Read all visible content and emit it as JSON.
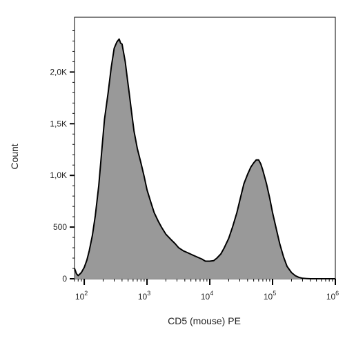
{
  "chart_data": {
    "type": "area",
    "xlabel": "CD5 (mouse) PE",
    "ylabel": "Count",
    "x_scale": "log",
    "xlim": [
      70,
      1000000
    ],
    "ylim": [
      0,
      2530
    ],
    "y_ticks": [
      {
        "value": 0,
        "label": "0"
      },
      {
        "value": 500,
        "label": "500"
      },
      {
        "value": 1000,
        "label": "1,0K"
      },
      {
        "value": 1500,
        "label": "1,5K"
      },
      {
        "value": 2000,
        "label": "2,0K"
      }
    ],
    "x_ticks": [
      {
        "value": 100,
        "base": "10",
        "exp": "2"
      },
      {
        "value": 1000,
        "base": "10",
        "exp": "3"
      },
      {
        "value": 10000,
        "base": "10",
        "exp": "4"
      },
      {
        "value": 100000,
        "base": "10",
        "exp": "5"
      },
      {
        "value": 1000000,
        "base": "10",
        "exp": "6"
      }
    ],
    "fill_color": "#999999",
    "line_color": "#000000",
    "grid": false,
    "series": [
      {
        "x": [
          70,
          75,
          80,
          90,
          100,
          110,
          120,
          135,
          150,
          170,
          190,
          210,
          240,
          270,
          300,
          330,
          360,
          380,
          400,
          420,
          450,
          480,
          520,
          570,
          620,
          700,
          800,
          900,
          1000,
          1150,
          1300,
          1500,
          1700,
          2000,
          2400,
          2800,
          3200,
          3800,
          4500,
          5300,
          6300,
          7500,
          8500,
          10000,
          11500,
          13000,
          15000,
          17000,
          20000,
          23000,
          27000,
          31000,
          35000,
          40000,
          45000,
          50000,
          55000,
          60000,
          65000,
          70000,
          80000,
          90000,
          100000,
          115000,
          130000,
          150000,
          170000,
          200000,
          230000,
          260000,
          300000,
          350000,
          400000,
          500000,
          700000,
          1000000
        ],
        "y": [
          100,
          50,
          30,
          60,
          110,
          180,
          270,
          420,
          610,
          900,
          1240,
          1540,
          1800,
          2050,
          2230,
          2290,
          2320,
          2280,
          2270,
          2200,
          2100,
          1960,
          1800,
          1600,
          1430,
          1260,
          1120,
          990,
          860,
          740,
          640,
          560,
          500,
          430,
          380,
          340,
          300,
          270,
          250,
          230,
          210,
          190,
          170,
          170,
          175,
          200,
          240,
          300,
          390,
          500,
          640,
          790,
          920,
          1010,
          1080,
          1120,
          1150,
          1150,
          1110,
          1050,
          920,
          780,
          640,
          480,
          340,
          210,
          120,
          60,
          30,
          15,
          5,
          2,
          0,
          0,
          0,
          0
        ]
      }
    ]
  }
}
